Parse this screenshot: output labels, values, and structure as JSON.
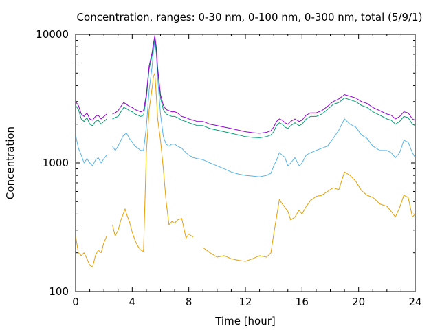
{
  "chart_data": {
    "type": "line",
    "title": "Concentration, ranges: 0-30 nm, 0-100 nm, 0-300 nm, total (5/9/1)",
    "xlabel": "Time [hour]",
    "ylabel": "Concentration",
    "xlim": [
      0,
      24
    ],
    "ylim": [
      100,
      10000
    ],
    "yscale": "log",
    "x_ticks": [
      "0",
      "4",
      "8",
      "12",
      "16",
      "20",
      "24"
    ],
    "x_tick_values": [
      0,
      4,
      8,
      12,
      16,
      20,
      24
    ],
    "y_ticks": [
      "100",
      "1000",
      "10000"
    ],
    "y_tick_values": [
      100,
      1000,
      10000
    ],
    "grid": false,
    "legend": "none",
    "series": [
      {
        "color": "#e69f00",
        "x": [
          0,
          0.2,
          0.4,
          0.6,
          0.8,
          1.0,
          1.2,
          1.4,
          1.6,
          1.8,
          2.0,
          2.2,
          2.5,
          2.6,
          2.8,
          3.0,
          3.2,
          3.4,
          3.5,
          3.6,
          3.8,
          4.0,
          4.2,
          4.4,
          4.6,
          4.8,
          5.0,
          5.2,
          5.4,
          5.5,
          5.6,
          5.7,
          5.8,
          6.0,
          6.2,
          6.4,
          6.6,
          6.8,
          7.0,
          7.2,
          7.5,
          7.8,
          8.0,
          8.3,
          8.6,
          9.0,
          9.5,
          10.0,
          10.5,
          11.0,
          11.5,
          12.0,
          12.5,
          13.0,
          13.5,
          13.8,
          14.0,
          14.2,
          14.4,
          14.6,
          14.8,
          15.0,
          15.2,
          15.5,
          15.8,
          16.0,
          16.3,
          16.6,
          17.0,
          17.4,
          17.8,
          18.2,
          18.6,
          19.0,
          19.4,
          19.8,
          20.2,
          20.6,
          21.0,
          21.5,
          22.0,
          22.3,
          22.6,
          22.9,
          23.2,
          23.5,
          23.8,
          24.0
        ],
        "values": [
          270,
          200,
          190,
          200,
          180,
          160,
          155,
          190,
          210,
          200,
          240,
          270,
          null,
          330,
          270,
          300,
          360,
          410,
          440,
          400,
          350,
          290,
          250,
          225,
          210,
          205,
          1200,
          2600,
          3800,
          4700,
          5000,
          3400,
          2200,
          1500,
          900,
          500,
          330,
          350,
          340,
          360,
          370,
          260,
          280,
          265,
          null,
          220,
          200,
          185,
          190,
          180,
          175,
          172,
          180,
          190,
          185,
          200,
          280,
          380,
          520,
          480,
          450,
          420,
          360,
          380,
          430,
          400,
          460,
          510,
          550,
          560,
          600,
          640,
          620,
          850,
          800,
          720,
          610,
          560,
          540,
          480,
          460,
          420,
          380,
          450,
          560,
          540,
          380,
          400
        ]
      },
      {
        "color": "#56b4e9",
        "x": [
          0,
          0.2,
          0.4,
          0.6,
          0.8,
          1.0,
          1.2,
          1.4,
          1.6,
          1.8,
          2.0,
          2.2,
          2.5,
          2.6,
          2.8,
          3.0,
          3.2,
          3.4,
          3.6,
          3.8,
          4.0,
          4.2,
          4.4,
          4.6,
          4.8,
          5.0,
          5.2,
          5.4,
          5.5,
          5.6,
          5.7,
          5.8,
          6.0,
          6.2,
          6.4,
          6.6,
          6.8,
          7.0,
          7.2,
          7.5,
          7.8,
          8.0,
          8.3,
          8.6,
          9.0,
          9.5,
          10.0,
          10.5,
          11.0,
          11.5,
          12.0,
          12.5,
          13.0,
          13.5,
          13.8,
          14.0,
          14.2,
          14.4,
          14.6,
          14.8,
          15.0,
          15.2,
          15.5,
          15.8,
          16.0,
          16.3,
          16.6,
          17.0,
          17.4,
          17.8,
          18.2,
          18.6,
          19.0,
          19.4,
          19.8,
          20.2,
          20.6,
          21.0,
          21.5,
          22.0,
          22.3,
          22.6,
          22.9,
          23.2,
          23.5,
          23.8,
          24.0
        ],
        "values": [
          1650,
          1300,
          1150,
          1000,
          1080,
          1000,
          950,
          1050,
          1100,
          1000,
          1080,
          1150,
          null,
          1350,
          1250,
          1350,
          1500,
          1650,
          1700,
          1550,
          1450,
          1350,
          1300,
          1250,
          1250,
          1900,
          3700,
          5600,
          7400,
          8800,
          7200,
          4600,
          2400,
          1600,
          1400,
          1350,
          1400,
          1400,
          1350,
          1300,
          1200,
          1150,
          1100,
          1080,
          1060,
          1000,
          950,
          900,
          850,
          820,
          800,
          790,
          780,
          800,
          830,
          950,
          1050,
          1200,
          1150,
          1100,
          950,
          1000,
          1100,
          950,
          1000,
          1150,
          1200,
          1250,
          1300,
          1350,
          1550,
          1800,
          2200,
          2000,
          1900,
          1650,
          1550,
          1350,
          1250,
          1250,
          1200,
          1100,
          1200,
          1500,
          1450,
          1200,
          1100
        ]
      },
      {
        "color": "#009e73",
        "x": [
          0,
          0.2,
          0.4,
          0.6,
          0.8,
          1.0,
          1.2,
          1.4,
          1.6,
          1.8,
          2.0,
          2.2,
          2.5,
          2.6,
          2.8,
          3.0,
          3.2,
          3.4,
          3.6,
          3.8,
          4.0,
          4.2,
          4.4,
          4.6,
          4.8,
          5.0,
          5.2,
          5.4,
          5.5,
          5.6,
          5.7,
          5.8,
          6.0,
          6.2,
          6.4,
          6.6,
          6.8,
          7.0,
          7.2,
          7.5,
          7.8,
          8.0,
          8.3,
          8.6,
          9.0,
          9.5,
          10.0,
          10.5,
          11.0,
          11.5,
          12.0,
          12.5,
          13.0,
          13.5,
          13.8,
          14.0,
          14.2,
          14.4,
          14.6,
          14.8,
          15.0,
          15.2,
          15.5,
          15.8,
          16.0,
          16.3,
          16.6,
          17.0,
          17.4,
          17.8,
          18.2,
          18.6,
          19.0,
          19.4,
          19.8,
          20.2,
          20.6,
          21.0,
          21.5,
          22.0,
          22.3,
          22.6,
          22.9,
          23.2,
          23.5,
          23.8,
          24.0
        ],
        "values": [
          2800,
          2600,
          2200,
          2100,
          2250,
          2000,
          1950,
          2100,
          2150,
          2000,
          2100,
          2200,
          null,
          2200,
          2250,
          2300,
          2500,
          2700,
          2650,
          2550,
          2500,
          2400,
          2350,
          2300,
          2350,
          3200,
          5400,
          6800,
          8000,
          9300,
          7600,
          5200,
          3200,
          2600,
          2400,
          2350,
          2300,
          2300,
          2250,
          2150,
          2100,
          2050,
          2000,
          1950,
          1950,
          1850,
          1800,
          1750,
          1700,
          1650,
          1600,
          1580,
          1570,
          1600,
          1650,
          1750,
          1950,
          2050,
          2000,
          1900,
          1850,
          1950,
          2050,
          1950,
          2000,
          2200,
          2300,
          2300,
          2400,
          2600,
          2850,
          2950,
          3200,
          3100,
          3000,
          2800,
          2700,
          2500,
          2350,
          2200,
          2150,
          2000,
          2100,
          2300,
          2250,
          2000,
          1950
        ]
      },
      {
        "color": "#9400d3",
        "x": [
          0,
          0.2,
          0.4,
          0.6,
          0.8,
          1.0,
          1.2,
          1.4,
          1.6,
          1.8,
          2.0,
          2.2,
          2.5,
          2.6,
          2.8,
          3.0,
          3.2,
          3.4,
          3.6,
          3.8,
          4.0,
          4.2,
          4.4,
          4.6,
          4.8,
          5.0,
          5.2,
          5.4,
          5.5,
          5.6,
          5.7,
          5.8,
          6.0,
          6.2,
          6.4,
          6.6,
          6.8,
          7.0,
          7.2,
          7.5,
          7.8,
          8.0,
          8.3,
          8.6,
          9.0,
          9.5,
          10.0,
          10.5,
          11.0,
          11.5,
          12.0,
          12.5,
          13.0,
          13.5,
          13.8,
          14.0,
          14.2,
          14.4,
          14.6,
          14.8,
          15.0,
          15.2,
          15.5,
          15.8,
          16.0,
          16.3,
          16.6,
          17.0,
          17.4,
          17.8,
          18.2,
          18.6,
          19.0,
          19.4,
          19.8,
          20.2,
          20.6,
          21.0,
          21.5,
          22.0,
          22.3,
          22.6,
          22.9,
          23.2,
          23.5,
          23.8,
          24.0
        ],
        "values": [
          3000,
          2800,
          2400,
          2300,
          2450,
          2200,
          2150,
          2300,
          2350,
          2200,
          2300,
          2400,
          null,
          2400,
          2450,
          2550,
          2750,
          2950,
          2850,
          2750,
          2700,
          2600,
          2550,
          2500,
          2550,
          3400,
          5700,
          7200,
          8500,
          9800,
          8000,
          5500,
          3400,
          2800,
          2600,
          2550,
          2500,
          2500,
          2450,
          2300,
          2250,
          2200,
          2150,
          2100,
          2100,
          2000,
          1950,
          1900,
          1850,
          1800,
          1750,
          1720,
          1700,
          1730,
          1780,
          1900,
          2100,
          2200,
          2150,
          2050,
          2000,
          2100,
          2200,
          2100,
          2150,
          2350,
          2450,
          2450,
          2550,
          2750,
          3000,
          3150,
          3400,
          3300,
          3200,
          3000,
          2900,
          2700,
          2550,
          2400,
          2350,
          2200,
          2300,
          2500,
          2450,
          2200,
          2150
        ]
      }
    ]
  }
}
